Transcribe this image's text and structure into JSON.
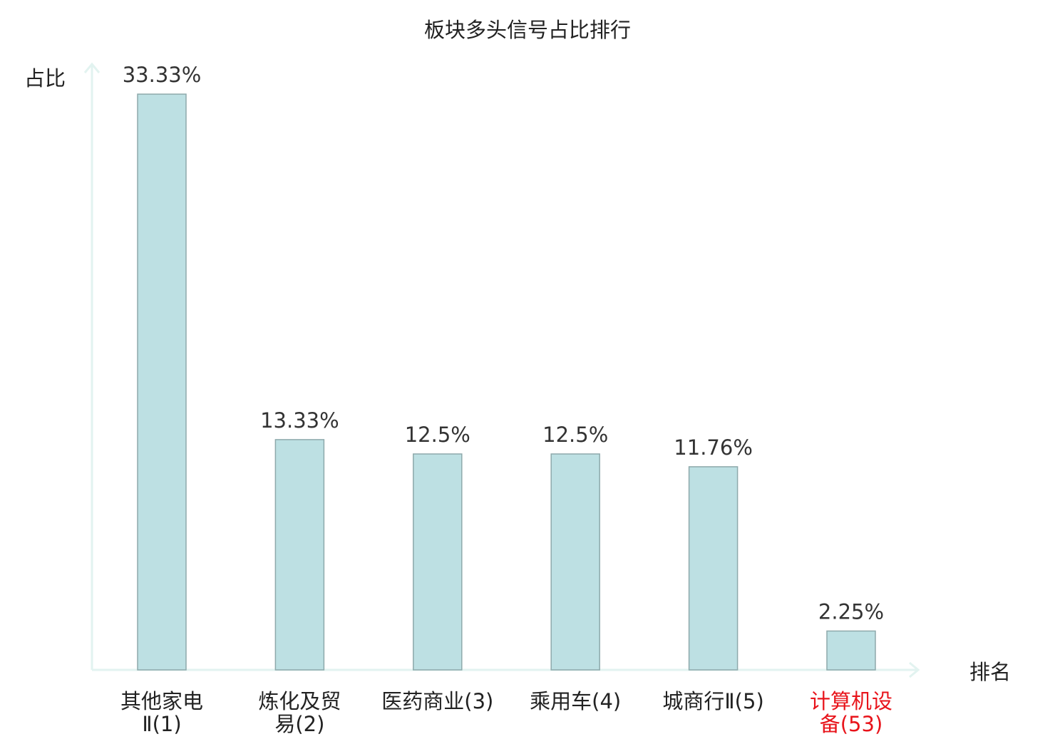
{
  "chart_data": {
    "type": "bar",
    "title": "板块多头信号占比排行",
    "ylabel": "占比",
    "xlabel": "排名",
    "categories": [
      {
        "line1": "其他家电",
        "line2": "Ⅱ(1)",
        "highlight": false
      },
      {
        "line1": "炼化及贸",
        "line2": "易(2)",
        "highlight": false
      },
      {
        "line1": "医药商业(3)",
        "line2": "",
        "highlight": false
      },
      {
        "line1": "乘用车(4)",
        "line2": "",
        "highlight": false
      },
      {
        "line1": "城商行Ⅱ(5)",
        "line2": "",
        "highlight": false
      },
      {
        "line1": "计算机设",
        "line2": "备(53)",
        "highlight": true
      }
    ],
    "values": [
      33.33,
      13.33,
      12.5,
      12.5,
      11.76,
      2.25
    ],
    "value_labels": [
      "33.33%",
      "13.33%",
      "12.5%",
      "12.5%",
      "11.76%",
      "2.25%"
    ],
    "ylim": [
      0,
      35
    ],
    "grid": false,
    "colors": {
      "bar_fill": "#bde0e3",
      "bar_stroke": "#8ea9ab",
      "axis": "#e2f3f0",
      "text": "#222222",
      "label_text": "#333333",
      "highlight_text": "#e8141b"
    }
  }
}
